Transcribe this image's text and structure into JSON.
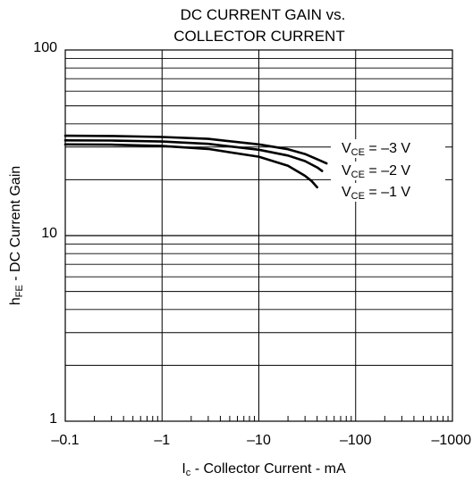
{
  "chart_data": {
    "type": "line",
    "title_lines": [
      "DC CURRENT GAIN vs.",
      "COLLECTOR CURRENT"
    ],
    "xlabel": {
      "main": "I",
      "sub": "c",
      "rest": " - Collector Current - mA"
    },
    "ylabel": {
      "main": "h",
      "sub": "FE",
      "rest": " - DC Current Gain"
    },
    "x_scale": "log",
    "y_scale": "log",
    "x_range": [
      -0.1,
      -1000
    ],
    "y_range": [
      1,
      100
    ],
    "x_ticks": [
      {
        "value": -0.1,
        "label": "–0.1"
      },
      {
        "value": -1,
        "label": "–1"
      },
      {
        "value": -10,
        "label": "–10"
      },
      {
        "value": -100,
        "label": "–100"
      },
      {
        "value": -1000,
        "label": "–1000"
      }
    ],
    "y_ticks": [
      {
        "value": 1,
        "label": "1"
      },
      {
        "value": 10,
        "label": "10"
      },
      {
        "value": 100,
        "label": "100"
      }
    ],
    "grid": true,
    "series": [
      {
        "name": "VCE = –3 V",
        "label": {
          "v": "V",
          "sub": "CE",
          "rest": " = –3 V"
        },
        "x": [
          -0.1,
          -0.3,
          -1,
          -3,
          -10,
          -20,
          -30,
          -40,
          -50
        ],
        "y": [
          34.5,
          34.4,
          34.0,
          33.2,
          31.0,
          29.2,
          27.5,
          25.8,
          24.5
        ]
      },
      {
        "name": "VCE = –2 V",
        "label": {
          "v": "V",
          "sub": "CE",
          "rest": " = –2 V"
        },
        "x": [
          -0.1,
          -0.3,
          -1,
          -3,
          -10,
          -20,
          -30,
          -40,
          -45
        ],
        "y": [
          32.6,
          32.5,
          32.1,
          31.2,
          29.0,
          27.0,
          25.2,
          23.3,
          22.3
        ]
      },
      {
        "name": "VCE = –1 V",
        "label": {
          "v": "V",
          "sub": "CE",
          "rest": " = –1 V"
        },
        "x": [
          -0.1,
          -0.3,
          -1,
          -3,
          -10,
          -20,
          -30,
          -35,
          -40
        ],
        "y": [
          31.0,
          30.9,
          30.4,
          29.3,
          26.6,
          23.8,
          21.0,
          19.7,
          18.2
        ]
      }
    ]
  }
}
